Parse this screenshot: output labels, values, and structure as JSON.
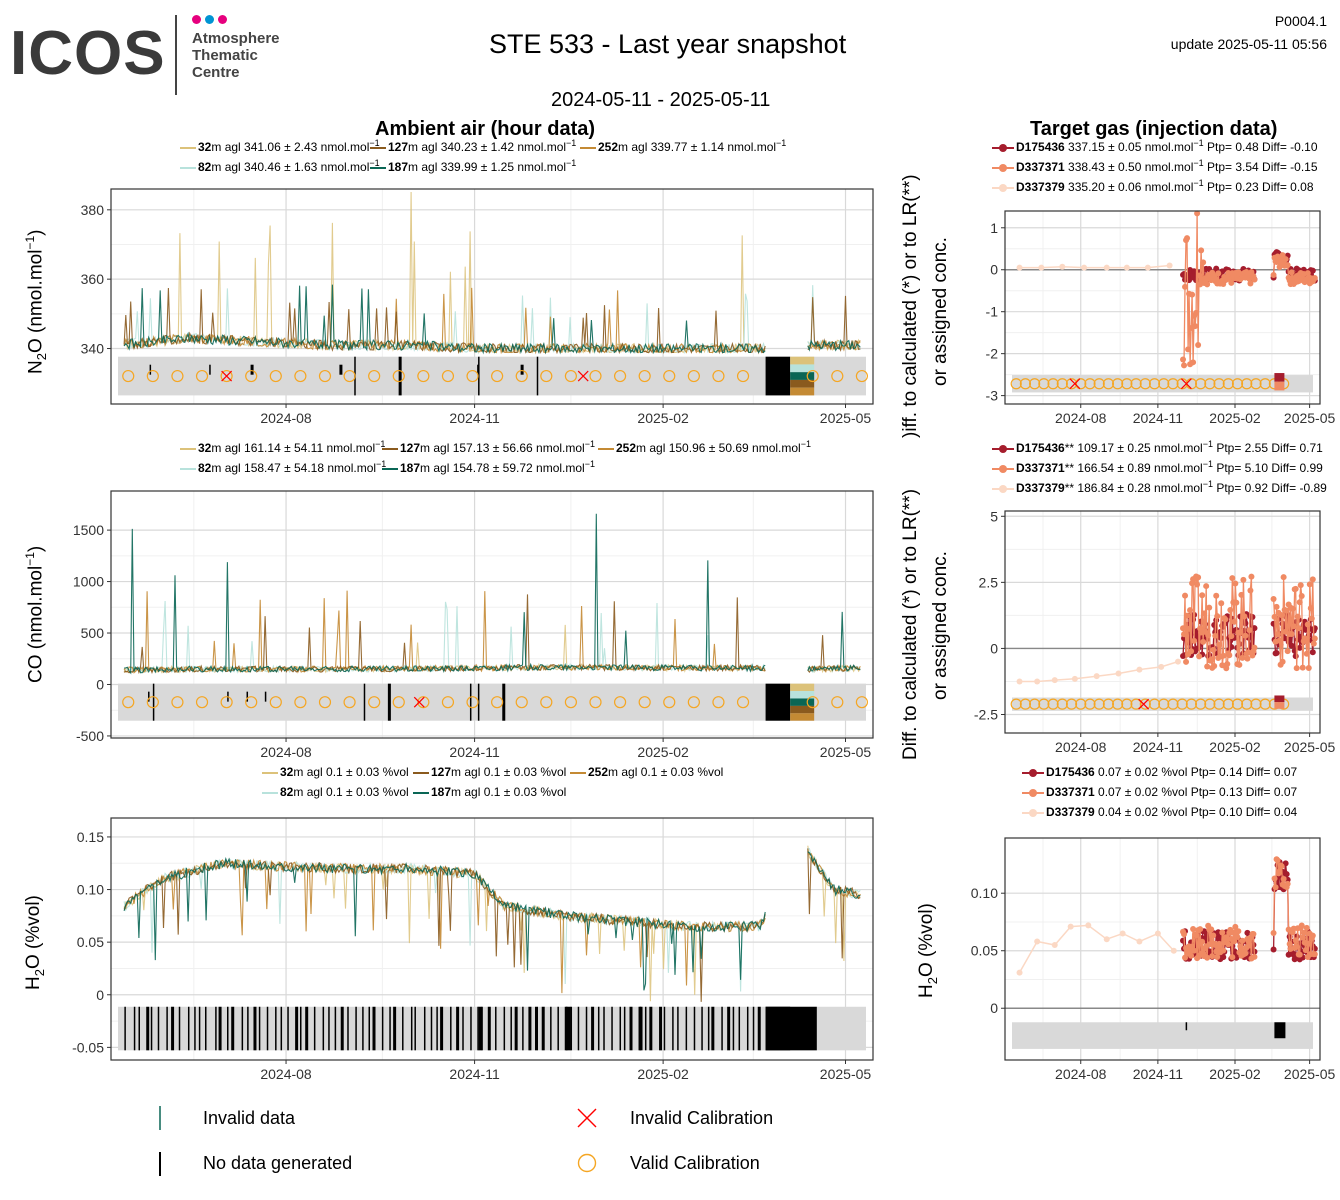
{
  "header": {
    "logo_word": "ICOS",
    "logo_lines": [
      "Atmosphere",
      "Thematic",
      "Centre"
    ],
    "logo_dot_colors": [
      "#e6007e",
      "#0094d3",
      "#e6007e"
    ],
    "title": "STE 533 - Last year snapshot",
    "date_range": "2024-05-11 - 2025-05-11",
    "doc_id": "P0004.1",
    "update": "update  2025-05-11 05:56"
  },
  "sections": {
    "ambient": "Ambient air (hour data)",
    "target": "Target gas (injection data)"
  },
  "colors": {
    "h32": "#dcc27a",
    "h82": "#b8e2dc",
    "h127": "#8a5a1e",
    "h187": "#0a6655",
    "h252": "#c48a34",
    "t1": "#a51d2d",
    "t2": "#f08a63",
    "t3": "#fbd8c4",
    "invalid_cal": "#ff0000",
    "valid_cal": "#f5a623",
    "flag_band": "#d9d9d9"
  },
  "ambient_legends": {
    "n2o": [
      {
        "h": "32",
        "rest": "m agl 341.06 ± 2.43 nmol.mol",
        "sup": "−1",
        "color": "h32"
      },
      {
        "h": "127",
        "rest": "m agl 340.23 ± 1.42 nmol.mol",
        "sup": "−1",
        "color": "h127"
      },
      {
        "h": "252",
        "rest": "m agl 339.77 ± 1.14 nmol.mol",
        "sup": "−1",
        "color": "h252"
      },
      {
        "h": "82",
        "rest": "m agl 340.46 ± 1.63 nmol.mol",
        "sup": "−1",
        "color": "h82"
      },
      {
        "h": "187",
        "rest": "m agl 339.99 ± 1.25 nmol.mol",
        "sup": "−1",
        "color": "h187"
      }
    ],
    "co": [
      {
        "h": "32",
        "rest": "m agl 161.14 ± 54.11 nmol.mol",
        "sup": "−1",
        "color": "h32"
      },
      {
        "h": "127",
        "rest": "m agl 157.13 ± 56.66 nmol.mol",
        "sup": "−1",
        "color": "h127"
      },
      {
        "h": "252",
        "rest": "m agl 150.96 ± 50.69 nmol.mol",
        "sup": "−1",
        "color": "h252"
      },
      {
        "h": "82",
        "rest": "m agl 158.47 ± 54.18 nmol.mol",
        "sup": "−1",
        "color": "h82"
      },
      {
        "h": "187",
        "rest": "m agl 154.78 ± 59.72 nmol.mol",
        "sup": "−1",
        "color": "h187"
      }
    ],
    "h2o": [
      {
        "h": "32",
        "rest": "m agl 0.1 ± 0.03 %vol",
        "sup": "",
        "color": "h32"
      },
      {
        "h": "127",
        "rest": "m agl 0.1 ± 0.03 %vol",
        "sup": "",
        "color": "h127"
      },
      {
        "h": "252",
        "rest": "m agl 0.1 ± 0.03 %vol",
        "sup": "",
        "color": "h252"
      },
      {
        "h": "82",
        "rest": "m agl 0.1 ± 0.03 %vol",
        "sup": "",
        "color": "h82"
      },
      {
        "h": "187",
        "rest": "m agl 0.1 ± 0.03 %vol",
        "sup": "",
        "color": "h187"
      }
    ]
  },
  "target_legends": {
    "n2o": [
      {
        "id": "D175436",
        "mark": "",
        "rest": " 337.15 ± 0.05 nmol.mol",
        "sup": "−1",
        "tail": " Ptp= 0.48 Diff= -0.10",
        "color": "t1"
      },
      {
        "id": "D337371",
        "mark": "",
        "rest": " 338.43 ± 0.50 nmol.mol",
        "sup": "−1",
        "tail": " Ptp= 3.54 Diff= -0.15",
        "color": "t2"
      },
      {
        "id": "D337379",
        "mark": "",
        "rest": " 335.20 ± 0.06 nmol.mol",
        "sup": "−1",
        "tail": " Ptp= 0.23 Diff= 0.08",
        "color": "t3"
      }
    ],
    "co": [
      {
        "id": "D175436",
        "mark": "**",
        "rest": " 109.17 ± 0.25 nmol.mol",
        "sup": "−1",
        "tail": " Ptp= 2.55 Diff= 0.71",
        "color": "t1"
      },
      {
        "id": "D337371",
        "mark": "**",
        "rest": " 166.54 ± 0.89 nmol.mol",
        "sup": "−1",
        "tail": " Ptp= 5.10 Diff= 0.99",
        "color": "t2"
      },
      {
        "id": "D337379",
        "mark": "**",
        "rest": " 186.84 ± 0.28 nmol.mol",
        "sup": "−1",
        "tail": " Ptp= 0.92 Diff= -0.89",
        "color": "t3"
      }
    ],
    "h2o": [
      {
        "id": "D175436",
        "mark": "",
        "rest": " 0.07 ± 0.02 %vol",
        "sup": "",
        "tail": " Ptp= 0.14 Diff= 0.07",
        "color": "t1"
      },
      {
        "id": "D337371",
        "mark": "",
        "rest": " 0.07 ± 0.02 %vol",
        "sup": "",
        "tail": " Ptp= 0.13 Diff= 0.07",
        "color": "t2"
      },
      {
        "id": "D337379",
        "mark": "",
        "rest": " 0.04 ± 0.02 %vol",
        "sup": "",
        "tail": " Ptp= 0.10 Diff= 0.04",
        "color": "t3"
      }
    ]
  },
  "axis_labels": {
    "n2o_main": "N",
    "n2o_sub": "2",
    "n2o_tail": "O (nmol.mol",
    "n2o_sup": "−1",
    "co_main": "CO (nmol.mol",
    "co_sup": "−1",
    "h2o_main": "H",
    "h2o_sub": "2",
    "h2o_tail": "O (%vol)",
    "target_diff_1": "Diff. to calculated (*) or to LR(**)",
    "target_diff_2": "or assigned conc.",
    "target_diff_clipped": ")iff. to calculated (*) or to LR(**)"
  },
  "bottom_legend": {
    "invalid_data": "Invalid data",
    "no_data": "No data generated",
    "invalid_cal": "Invalid Calibration",
    "valid_cal": "Valid Calibration"
  },
  "chart_data": [
    {
      "type": "line",
      "title": "Ambient air (hour data)",
      "ylabel": "N2O (nmol.mol-1)",
      "xticks": [
        "2024-08",
        "2024-11",
        "2025-02",
        "2025-05"
      ],
      "yticks": [
        340,
        360,
        380
      ],
      "ylim": [
        324,
        386
      ],
      "xlim": [
        "2024-05-11",
        "2025-05-11"
      ],
      "series": [
        {
          "name": "32m agl",
          "mean": 341.06
        },
        {
          "name": "82m agl",
          "mean": 340.46
        },
        {
          "name": "127m agl",
          "mean": 340.23
        },
        {
          "name": "187m agl",
          "mean": 339.99
        },
        {
          "name": "252m agl",
          "mean": 339.77
        }
      ],
      "profile": {
        "x": [
          "2024-05-11",
          "2024-06-15",
          "2024-07-20",
          "2024-08-25",
          "2024-09-30",
          "2024-11-05",
          "2024-12-10",
          "2025-01-15",
          "2025-02-20",
          "2025-03-20",
          "2025-04-15",
          "2025-05-11"
        ],
        "y": [
          341,
          343,
          342,
          341,
          341,
          340,
          340,
          340,
          340,
          340,
          341,
          341
        ]
      },
      "gap": [
        "2025-03-23",
        "2025-04-12"
      ]
    },
    {
      "type": "line",
      "ylabel": "CO (nmol.mol-1)",
      "xticks": [
        "2024-08",
        "2024-11",
        "2025-02",
        "2025-05"
      ],
      "yticks": [
        -500,
        0,
        500,
        1000,
        1500
      ],
      "ylim": [
        -520,
        1880
      ],
      "series": [
        {
          "name": "32m agl",
          "mean": 161.14
        },
        {
          "name": "82m agl",
          "mean": 158.47
        },
        {
          "name": "127m agl",
          "mean": 157.13
        },
        {
          "name": "187m agl",
          "mean": 154.78
        },
        {
          "name": "252m agl",
          "mean": 150.96
        }
      ],
      "profile": {
        "x": [
          "2024-05-11",
          "2024-06-15",
          "2024-07-20",
          "2024-08-25",
          "2024-09-30",
          "2024-11-05",
          "2024-12-10",
          "2025-01-15",
          "2025-02-20",
          "2025-03-20",
          "2025-04-15",
          "2025-05-11"
        ],
        "y": [
          140,
          150,
          150,
          150,
          155,
          160,
          170,
          165,
          160,
          160,
          150,
          160
        ]
      },
      "gap": [
        "2025-03-23",
        "2025-04-12"
      ]
    },
    {
      "type": "line",
      "ylabel": "H2O (%vol)",
      "xticks": [
        "2024-08",
        "2024-11",
        "2025-02",
        "2025-05"
      ],
      "yticks": [
        -0.05,
        0.0,
        0.05,
        0.1,
        0.15
      ],
      "ylim": [
        -0.062,
        0.168
      ],
      "series": [
        {
          "name": "32m agl",
          "mean": 0.1
        },
        {
          "name": "82m agl",
          "mean": 0.1
        },
        {
          "name": "127m agl",
          "mean": 0.1
        },
        {
          "name": "187m agl",
          "mean": 0.1
        },
        {
          "name": "252m agl",
          "mean": 0.1
        }
      ],
      "profile": {
        "x": [
          "2024-05-11",
          "2024-06-01",
          "2024-07-01",
          "2024-08-01",
          "2024-09-01",
          "2024-10-01",
          "2024-11-01",
          "2024-11-15",
          "2024-12-15",
          "2025-01-15",
          "2025-02-15",
          "2025-03-20",
          "2025-04-10",
          "2025-04-25",
          "2025-05-11"
        ],
        "y": [
          0.08,
          0.11,
          0.125,
          0.122,
          0.12,
          0.12,
          0.115,
          0.085,
          0.075,
          0.07,
          0.065,
          0.065,
          0.145,
          0.1,
          0.095
        ]
      },
      "gap": [
        "2025-03-23",
        "2025-04-12"
      ]
    },
    {
      "type": "scatter",
      "title": "Target gas (injection data)",
      "ylabel": "Diff. to calculated (*) or to LR(**) or assigned conc.",
      "xticks": [
        "2024-08",
        "2024-11",
        "2025-02",
        "2025-05"
      ],
      "yticks": [
        -3,
        -2,
        -1,
        0,
        1
      ],
      "ylim": [
        -3.2,
        1.4
      ],
      "series": [
        {
          "name": "D175436",
          "mean": 337.15,
          "sd": 0.05,
          "ptp": 0.48,
          "diff": -0.1
        },
        {
          "name": "D337371",
          "mean": 338.43,
          "sd": 0.5,
          "ptp": 3.54,
          "diff": -0.15
        },
        {
          "name": "D337379",
          "mean": 335.2,
          "sd": 0.06,
          "ptp": 0.23,
          "diff": 0.08
        }
      ],
      "d337379_points": {
        "x": [
          "2024-05-20",
          "2024-06-15",
          "2024-07-10",
          "2024-08-05",
          "2024-09-01",
          "2024-09-25",
          "2024-10-20",
          "2024-11-15"
        ],
        "y": [
          0.05,
          0.05,
          0.07,
          0.05,
          0.05,
          0.05,
          0.05,
          0.1
        ]
      }
    },
    {
      "type": "scatter",
      "ylabel": "Diff. to calculated (*) or to LR(**) or assigned conc.",
      "xticks": [
        "2024-08",
        "2024-11",
        "2025-02",
        "2025-05"
      ],
      "yticks": [
        -2.5,
        0.0,
        2.5,
        5.0
      ],
      "ylim": [
        -3.2,
        5.2
      ],
      "series": [
        {
          "name": "D175436**",
          "mean": 109.17,
          "sd": 0.25,
          "ptp": 2.55,
          "diff": 0.71
        },
        {
          "name": "D337371**",
          "mean": 166.54,
          "sd": 0.89,
          "ptp": 5.1,
          "diff": 0.99
        },
        {
          "name": "D337379**",
          "mean": 186.84,
          "sd": 0.28,
          "ptp": 0.92,
          "diff": -0.89
        }
      ],
      "d337379_points": {
        "x": [
          "2024-05-20",
          "2024-06-10",
          "2024-07-01",
          "2024-07-25",
          "2024-08-20",
          "2024-09-15",
          "2024-10-10",
          "2024-11-05",
          "2024-11-25"
        ],
        "y": [
          -1.25,
          -1.25,
          -1.2,
          -1.15,
          -1.05,
          -0.95,
          -0.8,
          -0.7,
          -0.5
        ]
      }
    },
    {
      "type": "scatter",
      "ylabel": "H2O (%vol)",
      "xticks": [
        "2024-08",
        "2024-11",
        "2025-02",
        "2025-05"
      ],
      "yticks": [
        0.0,
        0.05,
        0.1
      ],
      "ylim": [
        -0.045,
        0.148
      ],
      "series": [
        {
          "name": "D175436",
          "mean": 0.07,
          "sd": 0.02,
          "ptp": 0.14,
          "diff": 0.07
        },
        {
          "name": "D337371",
          "mean": 0.07,
          "sd": 0.02,
          "ptp": 0.13,
          "diff": 0.07
        },
        {
          "name": "D337379",
          "mean": 0.04,
          "sd": 0.02,
          "ptp": 0.1,
          "diff": 0.04
        }
      ],
      "d337379_points": {
        "x": [
          "2024-05-20",
          "2024-06-10",
          "2024-07-01",
          "2024-07-20",
          "2024-08-10",
          "2024-09-01",
          "2024-09-20",
          "2024-10-10",
          "2024-11-01",
          "2024-11-20"
        ],
        "y": [
          0.031,
          0.058,
          0.055,
          0.071,
          0.072,
          0.06,
          0.065,
          0.058,
          0.065,
          0.05
        ]
      }
    }
  ]
}
